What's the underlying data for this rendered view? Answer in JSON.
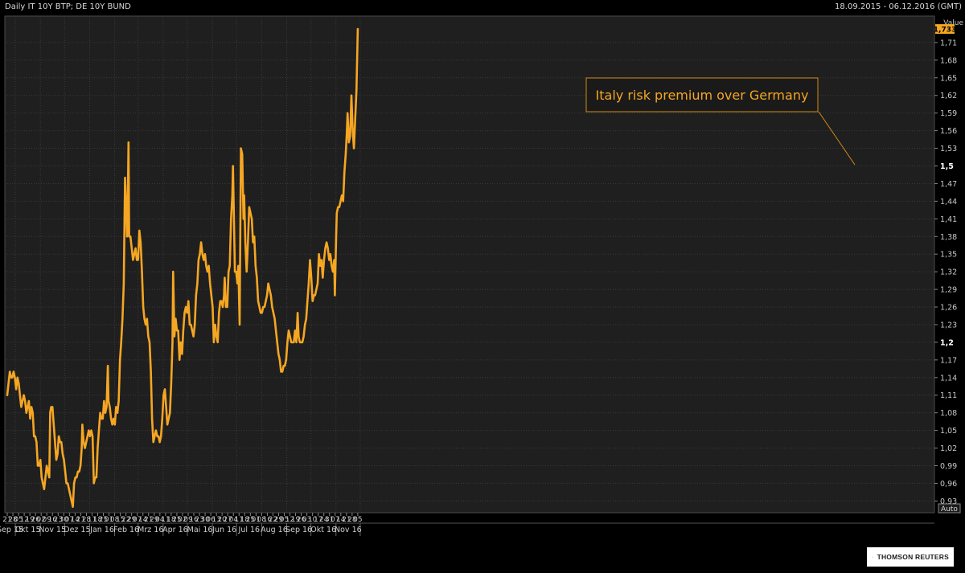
{
  "header": {
    "title": "Daily IT 10Y BTP; DE 10Y BUND",
    "range": "18.09.2015 - 06.12.2016 (GMT)"
  },
  "chart_data": {
    "type": "line",
    "ylabel": "Value",
    "ylim": [
      0.91,
      1.755
    ],
    "y_ticks": [
      "0,93",
      "0,96",
      "0,99",
      "1,02",
      "1,05",
      "1,08",
      "1,11",
      "1,14",
      "1,17",
      "1,2",
      "1,23",
      "1,26",
      "1,29",
      "1,32",
      "1,35",
      "1,38",
      "1,41",
      "1,44",
      "1,47",
      "1,5",
      "1,53",
      "1,56",
      "1,59",
      "1,62",
      "1,65",
      "1,68",
      "1,71"
    ],
    "y_ticks_bold": [
      "1,2",
      "1,5"
    ],
    "last_value": "1,733",
    "auto_label": "Auto",
    "day_ticks": [
      "21",
      "28",
      "05",
      "12",
      "19",
      "26",
      "02",
      "09",
      "16",
      "23",
      "30",
      "07",
      "14",
      "21",
      "28",
      "11",
      "18",
      "25",
      "01",
      "08",
      "15",
      "22",
      "29",
      "07",
      "14",
      "21",
      "29",
      "04",
      "11",
      "18",
      "25",
      "02",
      "09",
      "16",
      "23",
      "30",
      "06",
      "13",
      "20",
      "27",
      "04",
      "11",
      "18",
      "25",
      "01",
      "08",
      "16",
      "22",
      "29",
      "05",
      "12",
      "19",
      "26",
      "03",
      "10",
      "17",
      "24",
      "31",
      "07",
      "14",
      "21",
      "28",
      "05"
    ],
    "month_labels": [
      "Sep 15",
      "Okt 15",
      "Nov 15",
      "Dez 15",
      "Jan 16",
      "Feb 16",
      "Mrz 16",
      "Apr 16",
      "Mai 16",
      "Jun 16",
      "Jul 16",
      "Aug 16",
      "Sep 16",
      "Okt 16",
      "Nov 16"
    ],
    "annotation": "Italy risk premium over Germany",
    "series": [
      {
        "color": "#f5a623",
        "values": [
          [
            0,
            1.11
          ],
          [
            4,
            1.13
          ],
          [
            8,
            1.15
          ],
          [
            12,
            1.14
          ],
          [
            16,
            1.14
          ],
          [
            20,
            1.15
          ],
          [
            24,
            1.14
          ],
          [
            28,
            1.12
          ],
          [
            32,
            1.14
          ],
          [
            36,
            1.13
          ],
          [
            40,
            1.11
          ],
          [
            44,
            1.09
          ],
          [
            48,
            1.1
          ],
          [
            52,
            1.11
          ],
          [
            56,
            1.1
          ],
          [
            60,
            1.08
          ],
          [
            64,
            1.09
          ],
          [
            68,
            1.1
          ],
          [
            72,
            1.07
          ],
          [
            76,
            1.09
          ],
          [
            80,
            1.08
          ],
          [
            84,
            1.04
          ],
          [
            88,
            1.04
          ],
          [
            92,
            1.03
          ],
          [
            96,
            0.99
          ],
          [
            100,
            0.99
          ],
          [
            104,
            1.0
          ],
          [
            108,
            0.97
          ],
          [
            112,
            0.96
          ],
          [
            116,
            0.95
          ],
          [
            120,
            0.97
          ],
          [
            124,
            0.99
          ],
          [
            128,
            0.98
          ],
          [
            132,
            0.97
          ],
          [
            135,
            1.08
          ],
          [
            138,
            1.09
          ],
          [
            142,
            1.09
          ],
          [
            146,
            1.06
          ],
          [
            150,
            1.03
          ],
          [
            154,
            1.0
          ],
          [
            158,
            1.01
          ],
          [
            162,
            1.04
          ],
          [
            166,
            1.03
          ],
          [
            170,
            1.03
          ],
          [
            174,
            1.01
          ],
          [
            178,
            1.0
          ],
          [
            182,
            0.98
          ],
          [
            186,
            0.96
          ],
          [
            190,
            0.96
          ],
          [
            194,
            0.95
          ],
          [
            198,
            0.94
          ],
          [
            202,
            0.93
          ],
          [
            206,
            0.92
          ],
          [
            210,
            0.96
          ],
          [
            214,
            0.97
          ],
          [
            218,
            0.97
          ],
          [
            222,
            0.98
          ],
          [
            226,
            0.98
          ],
          [
            230,
            0.99
          ],
          [
            234,
            1.02
          ],
          [
            236,
            1.06
          ],
          [
            240,
            1.03
          ],
          [
            244,
            1.02
          ],
          [
            248,
            1.03
          ],
          [
            252,
            1.04
          ],
          [
            256,
            1.05
          ],
          [
            260,
            1.04
          ],
          [
            264,
            1.05
          ],
          [
            268,
            1.04
          ],
          [
            272,
            0.96
          ],
          [
            276,
            0.97
          ],
          [
            280,
            0.97
          ],
          [
            284,
            1.02
          ],
          [
            288,
            1.05
          ],
          [
            292,
            1.08
          ],
          [
            296,
            1.07
          ],
          [
            300,
            1.07
          ],
          [
            304,
            1.1
          ],
          [
            308,
            1.08
          ],
          [
            312,
            1.09
          ],
          [
            316,
            1.16
          ],
          [
            318,
            1.1
          ],
          [
            322,
            1.09
          ],
          [
            326,
            1.07
          ],
          [
            330,
            1.06
          ],
          [
            334,
            1.07
          ],
          [
            338,
            1.06
          ],
          [
            342,
            1.09
          ],
          [
            346,
            1.08
          ],
          [
            350,
            1.1
          ],
          [
            354,
            1.17
          ],
          [
            358,
            1.2
          ],
          [
            362,
            1.24
          ],
          [
            366,
            1.3
          ],
          [
            370,
            1.48
          ],
          [
            374,
            1.42
          ],
          [
            376,
            1.38
          ],
          [
            379,
            1.46
          ],
          [
            381,
            1.54
          ],
          [
            383,
            1.38
          ],
          [
            387,
            1.38
          ],
          [
            391,
            1.36
          ],
          [
            395,
            1.34
          ],
          [
            399,
            1.35
          ],
          [
            403,
            1.36
          ],
          [
            407,
            1.34
          ],
          [
            411,
            1.34
          ],
          [
            415,
            1.39
          ],
          [
            419,
            1.37
          ],
          [
            423,
            1.32
          ],
          [
            427,
            1.26
          ],
          [
            431,
            1.24
          ],
          [
            435,
            1.23
          ],
          [
            439,
            1.24
          ],
          [
            443,
            1.21
          ],
          [
            447,
            1.2
          ],
          [
            451,
            1.15
          ],
          [
            455,
            1.07
          ],
          [
            459,
            1.03
          ],
          [
            463,
            1.04
          ],
          [
            467,
            1.05
          ],
          [
            471,
            1.04
          ],
          [
            475,
            1.04
          ],
          [
            479,
            1.03
          ],
          [
            483,
            1.04
          ],
          [
            487,
            1.07
          ],
          [
            491,
            1.11
          ],
          [
            495,
            1.12
          ],
          [
            499,
            1.09
          ],
          [
            503,
            1.06
          ],
          [
            507,
            1.07
          ],
          [
            511,
            1.08
          ],
          [
            515,
            1.13
          ],
          [
            519,
            1.2
          ],
          [
            521,
            1.32
          ],
          [
            525,
            1.21
          ],
          [
            529,
            1.24
          ],
          [
            533,
            1.22
          ],
          [
            537,
            1.22
          ],
          [
            541,
            1.17
          ],
          [
            545,
            1.2
          ],
          [
            549,
            1.18
          ],
          [
            553,
            1.22
          ],
          [
            557,
            1.25
          ],
          [
            561,
            1.26
          ],
          [
            565,
            1.25
          ],
          [
            569,
            1.27
          ],
          [
            573,
            1.23
          ],
          [
            577,
            1.23
          ],
          [
            581,
            1.22
          ],
          [
            585,
            1.21
          ],
          [
            589,
            1.23
          ],
          [
            593,
            1.28
          ],
          [
            597,
            1.3
          ],
          [
            601,
            1.34
          ],
          [
            605,
            1.35
          ],
          [
            609,
            1.37
          ],
          [
            613,
            1.35
          ],
          [
            617,
            1.34
          ],
          [
            621,
            1.35
          ],
          [
            625,
            1.33
          ],
          [
            629,
            1.32
          ],
          [
            633,
            1.33
          ],
          [
            637,
            1.3
          ],
          [
            641,
            1.28
          ],
          [
            645,
            1.26
          ],
          [
            649,
            1.2
          ],
          [
            653,
            1.23
          ],
          [
            657,
            1.21
          ],
          [
            661,
            1.2
          ],
          [
            665,
            1.25
          ],
          [
            669,
            1.27
          ],
          [
            673,
            1.27
          ],
          [
            677,
            1.26
          ],
          [
            681,
            1.28
          ],
          [
            683,
            1.31
          ],
          [
            687,
            1.26
          ],
          [
            691,
            1.26
          ],
          [
            695,
            1.32
          ],
          [
            699,
            1.33
          ],
          [
            703,
            1.41
          ],
          [
            707,
            1.45
          ],
          [
            709,
            1.5
          ],
          [
            711,
            1.44
          ],
          [
            715,
            1.32
          ],
          [
            719,
            1.32
          ],
          [
            723,
            1.3
          ],
          [
            726,
            1.33
          ],
          [
            730,
            1.23
          ],
          [
            734,
            1.53
          ],
          [
            738,
            1.52
          ],
          [
            742,
            1.41
          ],
          [
            744,
            1.45
          ],
          [
            748,
            1.37
          ],
          [
            752,
            1.32
          ],
          [
            756,
            1.37
          ],
          [
            760,
            1.43
          ],
          [
            764,
            1.42
          ],
          [
            768,
            1.41
          ],
          [
            772,
            1.37
          ],
          [
            776,
            1.38
          ],
          [
            780,
            1.33
          ],
          [
            784,
            1.31
          ],
          [
            788,
            1.27
          ],
          [
            792,
            1.26
          ],
          [
            796,
            1.25
          ],
          [
            800,
            1.25
          ],
          [
            804,
            1.26
          ],
          [
            808,
            1.26
          ],
          [
            812,
            1.27
          ],
          [
            816,
            1.28
          ],
          [
            820,
            1.3
          ],
          [
            824,
            1.29
          ],
          [
            828,
            1.28
          ],
          [
            832,
            1.26
          ],
          [
            836,
            1.25
          ],
          [
            840,
            1.24
          ],
          [
            844,
            1.22
          ],
          [
            848,
            1.2
          ],
          [
            852,
            1.18
          ],
          [
            856,
            1.17
          ],
          [
            860,
            1.15
          ],
          [
            864,
            1.15
          ],
          [
            868,
            1.16
          ],
          [
            872,
            1.16
          ],
          [
            876,
            1.17
          ],
          [
            880,
            1.2
          ],
          [
            884,
            1.22
          ],
          [
            888,
            1.21
          ],
          [
            892,
            1.2
          ],
          [
            896,
            1.2
          ],
          [
            900,
            1.2
          ],
          [
            904,
            1.22
          ],
          [
            908,
            1.2
          ],
          [
            912,
            1.25
          ],
          [
            915,
            1.21
          ],
          [
            919,
            1.2
          ],
          [
            923,
            1.2
          ],
          [
            927,
            1.2
          ],
          [
            931,
            1.21
          ],
          [
            935,
            1.23
          ],
          [
            939,
            1.24
          ],
          [
            943,
            1.27
          ],
          [
            947,
            1.3
          ],
          [
            951,
            1.34
          ],
          [
            955,
            1.31
          ],
          [
            959,
            1.27
          ],
          [
            963,
            1.28
          ],
          [
            967,
            1.28
          ],
          [
            971,
            1.29
          ],
          [
            975,
            1.3
          ],
          [
            979,
            1.35
          ],
          [
            983,
            1.33
          ],
          [
            987,
            1.34
          ],
          [
            991,
            1.31
          ],
          [
            995,
            1.34
          ],
          [
            999,
            1.36
          ],
          [
            1003,
            1.37
          ],
          [
            1007,
            1.36
          ],
          [
            1011,
            1.34
          ],
          [
            1015,
            1.35
          ],
          [
            1019,
            1.33
          ],
          [
            1023,
            1.32
          ],
          [
            1027,
            1.34
          ],
          [
            1029,
            1.28
          ],
          [
            1033,
            1.38
          ],
          [
            1035,
            1.42
          ],
          [
            1039,
            1.43
          ],
          [
            1043,
            1.43
          ],
          [
            1047,
            1.44
          ],
          [
            1051,
            1.45
          ],
          [
            1055,
            1.44
          ],
          [
            1059,
            1.49
          ],
          [
            1063,
            1.52
          ],
          [
            1067,
            1.56
          ],
          [
            1069,
            1.59
          ],
          [
            1073,
            1.54
          ],
          [
            1077,
            1.55
          ],
          [
            1081,
            1.62
          ],
          [
            1085,
            1.56
          ],
          [
            1089,
            1.53
          ],
          [
            1093,
            1.58
          ],
          [
            1097,
            1.63
          ],
          [
            1101,
            1.733
          ]
        ]
      }
    ]
  }
}
